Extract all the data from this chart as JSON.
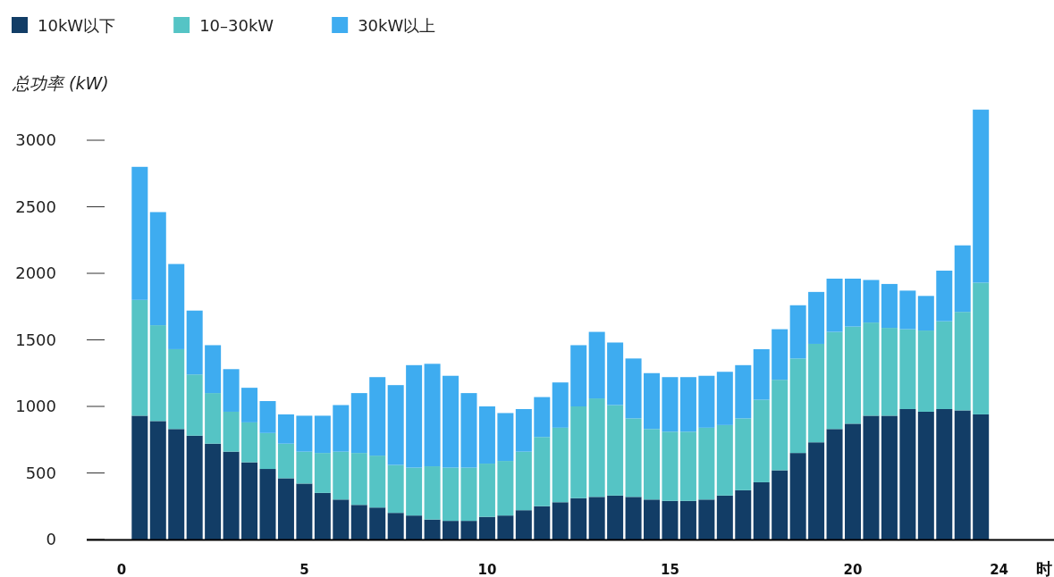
{
  "chart_data": {
    "type": "bar",
    "stacked": true,
    "ylabel": "总功率 (kW)",
    "xlabel": "时",
    "x": [
      0.5,
      1,
      1.5,
      2,
      2.5,
      3,
      3.5,
      4,
      4.5,
      5,
      5.5,
      6,
      6.5,
      7,
      7.5,
      8,
      8.5,
      9,
      9.5,
      10,
      10.5,
      11,
      11.5,
      12,
      12.5,
      13,
      13.5,
      14,
      14.5,
      15,
      15.5,
      16,
      16.5,
      17,
      17.5,
      18,
      18.5,
      19,
      19.5,
      20,
      20.5,
      21,
      21.5,
      22,
      22.5,
      23,
      23.5
    ],
    "xlim": [
      -0.95,
      25.5
    ],
    "xticks": [
      0,
      5,
      10,
      15,
      20,
      24
    ],
    "ylim": [
      0,
      3250
    ],
    "yticks": [
      0,
      500,
      1000,
      1500,
      2000,
      2500,
      3000
    ],
    "legend": "top left",
    "series": [
      {
        "name": "10kW以下",
        "color": "#123d66",
        "values": [
          930,
          890,
          830,
          780,
          720,
          660,
          580,
          530,
          460,
          420,
          350,
          300,
          260,
          240,
          200,
          180,
          150,
          140,
          140,
          170,
          180,
          220,
          250,
          280,
          310,
          320,
          330,
          320,
          300,
          290,
          290,
          300,
          330,
          370,
          430,
          520,
          650,
          730,
          830,
          870,
          930,
          930,
          980,
          960,
          980,
          970,
          940
        ]
      },
      {
        "name": "10–30kW",
        "color": "#55c4c5",
        "values": [
          870,
          720,
          600,
          460,
          380,
          300,
          300,
          270,
          260,
          240,
          300,
          360,
          390,
          390,
          360,
          360,
          400,
          400,
          400,
          400,
          410,
          440,
          520,
          560,
          690,
          740,
          680,
          590,
          530,
          520,
          520,
          540,
          530,
          540,
          620,
          680,
          710,
          740,
          730,
          730,
          700,
          660,
          600,
          610,
          660,
          740,
          990
        ]
      },
      {
        "name": "30kW以上",
        "color": "#3eacf0",
        "values": [
          1000,
          850,
          640,
          480,
          360,
          320,
          260,
          240,
          220,
          270,
          280,
          350,
          450,
          590,
          600,
          770,
          770,
          690,
          560,
          430,
          360,
          320,
          300,
          340,
          460,
          500,
          470,
          450,
          420,
          410,
          410,
          390,
          400,
          400,
          380,
          380,
          400,
          390,
          400,
          360,
          320,
          330,
          290,
          260,
          380,
          500,
          1300
        ]
      }
    ]
  }
}
